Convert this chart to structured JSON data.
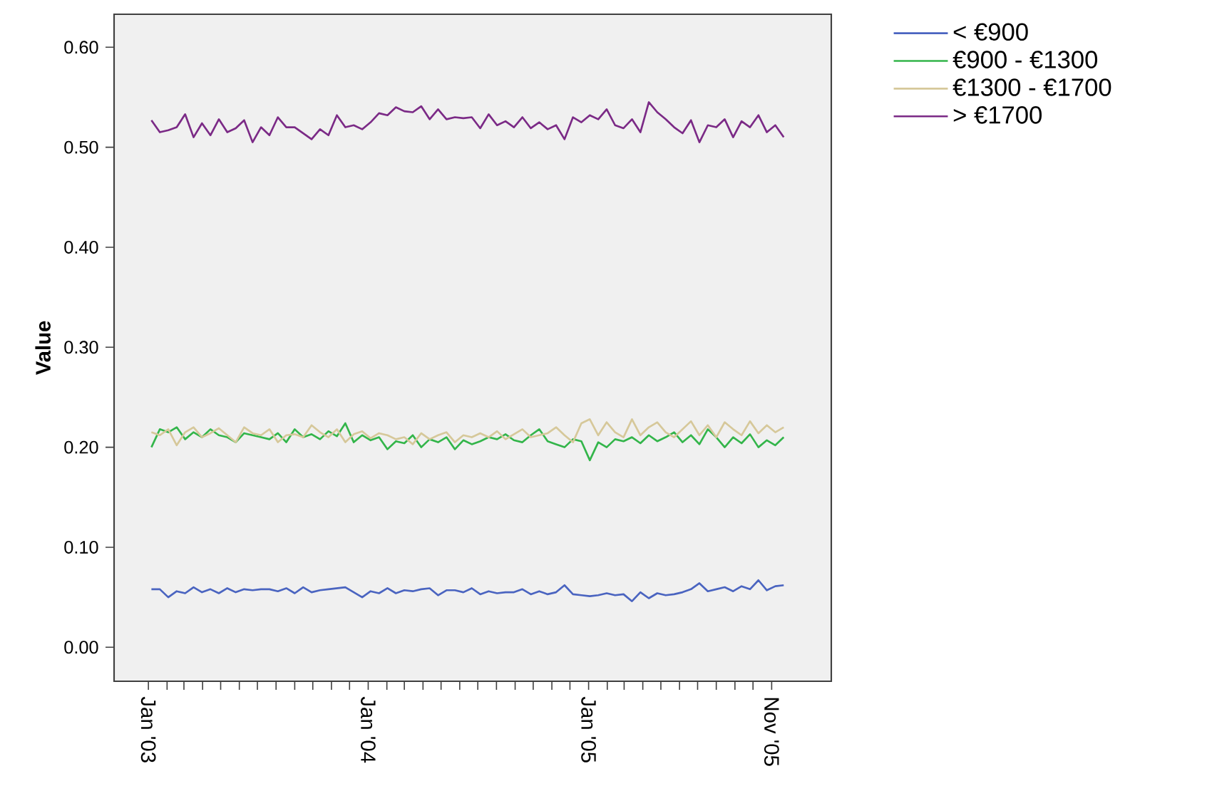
{
  "chart_data": {
    "type": "line",
    "ylabel": "Value",
    "x": [
      "2003-01-06",
      "2003-01-20",
      "2003-02-03",
      "2003-02-17",
      "2003-03-03",
      "2003-03-17",
      "2003-03-31",
      "2003-04-14",
      "2003-04-28",
      "2003-05-12",
      "2003-05-26",
      "2003-06-09",
      "2003-06-23",
      "2003-07-07",
      "2003-07-21",
      "2003-08-04",
      "2003-08-18",
      "2003-09-01",
      "2003-09-15",
      "2003-09-29",
      "2003-10-13",
      "2003-10-27",
      "2003-11-10",
      "2003-11-24",
      "2003-12-08",
      "2003-12-22",
      "2004-01-05",
      "2004-01-19",
      "2004-02-02",
      "2004-02-16",
      "2004-03-01",
      "2004-03-15",
      "2004-03-29",
      "2004-04-12",
      "2004-04-26",
      "2004-05-10",
      "2004-05-24",
      "2004-06-07",
      "2004-06-21",
      "2004-07-05",
      "2004-07-19",
      "2004-08-02",
      "2004-08-16",
      "2004-08-30",
      "2004-09-13",
      "2004-09-27",
      "2004-10-11",
      "2004-10-25",
      "2004-11-08",
      "2004-11-22",
      "2004-12-06",
      "2004-12-20",
      "2005-01-03",
      "2005-01-17",
      "2005-01-31",
      "2005-02-14",
      "2005-02-28",
      "2005-03-14",
      "2005-03-28",
      "2005-04-11",
      "2005-04-25",
      "2005-05-09",
      "2005-05-23",
      "2005-06-06",
      "2005-06-20",
      "2005-07-04",
      "2005-07-18",
      "2005-08-01",
      "2005-08-15",
      "2005-08-29",
      "2005-09-12",
      "2005-09-26",
      "2005-10-10",
      "2005-10-24",
      "2005-11-07",
      "2005-11-21"
    ],
    "series": [
      {
        "name": "< €900",
        "color": "#4a64c0",
        "values": [
          0.058,
          0.058,
          0.05,
          0.056,
          0.054,
          0.06,
          0.055,
          0.058,
          0.054,
          0.059,
          0.055,
          0.058,
          0.057,
          0.058,
          0.058,
          0.056,
          0.059,
          0.054,
          0.06,
          0.055,
          0.057,
          0.058,
          0.059,
          0.06,
          0.055,
          0.05,
          0.056,
          0.054,
          0.059,
          0.054,
          0.057,
          0.056,
          0.058,
          0.059,
          0.052,
          0.057,
          0.057,
          0.055,
          0.059,
          0.053,
          0.056,
          0.054,
          0.055,
          0.055,
          0.058,
          0.053,
          0.056,
          0.053,
          0.055,
          0.062,
          0.053,
          0.052,
          0.051,
          0.052,
          0.054,
          0.052,
          0.053,
          0.046,
          0.055,
          0.049,
          0.054,
          0.052,
          0.053,
          0.055,
          0.058,
          0.064,
          0.056,
          0.058,
          0.06,
          0.056,
          0.061,
          0.058,
          0.067,
          0.057,
          0.061,
          0.062
        ]
      },
      {
        "name": "€900 - €1300",
        "color": "#33b54a",
        "values": [
          0.2,
          0.218,
          0.215,
          0.22,
          0.208,
          0.215,
          0.21,
          0.218,
          0.212,
          0.21,
          0.205,
          0.214,
          0.212,
          0.21,
          0.208,
          0.214,
          0.205,
          0.218,
          0.21,
          0.213,
          0.208,
          0.216,
          0.211,
          0.224,
          0.205,
          0.212,
          0.207,
          0.21,
          0.198,
          0.206,
          0.204,
          0.212,
          0.2,
          0.208,
          0.205,
          0.21,
          0.198,
          0.207,
          0.203,
          0.206,
          0.21,
          0.208,
          0.213,
          0.207,
          0.205,
          0.212,
          0.218,
          0.206,
          0.203,
          0.2,
          0.208,
          0.206,
          0.187,
          0.205,
          0.2,
          0.208,
          0.206,
          0.21,
          0.204,
          0.212,
          0.206,
          0.21,
          0.215,
          0.205,
          0.212,
          0.203,
          0.218,
          0.21,
          0.2,
          0.21,
          0.204,
          0.213,
          0.2,
          0.207,
          0.202,
          0.21
        ]
      },
      {
        "name": "€1300 - €1700",
        "color": "#d6c89a",
        "values": [
          0.215,
          0.212,
          0.218,
          0.202,
          0.215,
          0.22,
          0.21,
          0.214,
          0.219,
          0.212,
          0.205,
          0.22,
          0.214,
          0.212,
          0.218,
          0.205,
          0.212,
          0.213,
          0.21,
          0.222,
          0.215,
          0.21,
          0.218,
          0.205,
          0.213,
          0.216,
          0.209,
          0.214,
          0.212,
          0.208,
          0.21,
          0.203,
          0.214,
          0.208,
          0.212,
          0.215,
          0.205,
          0.212,
          0.21,
          0.214,
          0.21,
          0.216,
          0.208,
          0.213,
          0.218,
          0.21,
          0.212,
          0.214,
          0.22,
          0.212,
          0.205,
          0.224,
          0.228,
          0.212,
          0.225,
          0.215,
          0.21,
          0.228,
          0.212,
          0.22,
          0.225,
          0.215,
          0.21,
          0.218,
          0.226,
          0.212,
          0.222,
          0.21,
          0.225,
          0.218,
          0.212,
          0.226,
          0.214,
          0.222,
          0.215,
          0.22
        ]
      },
      {
        "name": "> €1700",
        "color": "#7b2a86",
        "values": [
          0.527,
          0.515,
          0.517,
          0.52,
          0.533,
          0.51,
          0.524,
          0.512,
          0.528,
          0.515,
          0.519,
          0.527,
          0.505,
          0.52,
          0.512,
          0.53,
          0.52,
          0.52,
          0.514,
          0.508,
          0.518,
          0.512,
          0.532,
          0.52,
          0.522,
          0.518,
          0.525,
          0.534,
          0.532,
          0.54,
          0.536,
          0.535,
          0.541,
          0.528,
          0.538,
          0.528,
          0.53,
          0.529,
          0.53,
          0.519,
          0.533,
          0.522,
          0.526,
          0.52,
          0.53,
          0.519,
          0.525,
          0.518,
          0.522,
          0.508,
          0.53,
          0.525,
          0.532,
          0.528,
          0.538,
          0.522,
          0.519,
          0.528,
          0.515,
          0.545,
          0.535,
          0.528,
          0.52,
          0.514,
          0.527,
          0.505,
          0.522,
          0.52,
          0.528,
          0.51,
          0.526,
          0.52,
          0.532,
          0.515,
          0.522,
          0.51
        ]
      }
    ],
    "xlim": [
      "2002-11-05",
      "2006-02-08"
    ],
    "xticks": [
      {
        "value": "2003-01-01",
        "label": "Jan '03"
      },
      {
        "value": "2003-02-01",
        "label": null
      },
      {
        "value": "2003-03-01",
        "label": null
      },
      {
        "value": "2003-04-01",
        "label": null
      },
      {
        "value": "2003-05-01",
        "label": null
      },
      {
        "value": "2003-06-01",
        "label": null
      },
      {
        "value": "2003-07-01",
        "label": null
      },
      {
        "value": "2003-08-01",
        "label": null
      },
      {
        "value": "2003-09-01",
        "label": null
      },
      {
        "value": "2003-10-01",
        "label": null
      },
      {
        "value": "2003-11-01",
        "label": null
      },
      {
        "value": "2003-12-01",
        "label": null
      },
      {
        "value": "2004-01-01",
        "label": "Jan '04"
      },
      {
        "value": "2004-02-01",
        "label": null
      },
      {
        "value": "2004-03-01",
        "label": null
      },
      {
        "value": "2004-04-01",
        "label": null
      },
      {
        "value": "2004-05-01",
        "label": null
      },
      {
        "value": "2004-06-01",
        "label": null
      },
      {
        "value": "2004-07-01",
        "label": null
      },
      {
        "value": "2004-08-01",
        "label": null
      },
      {
        "value": "2004-09-01",
        "label": null
      },
      {
        "value": "2004-10-01",
        "label": null
      },
      {
        "value": "2004-11-01",
        "label": null
      },
      {
        "value": "2004-12-01",
        "label": null
      },
      {
        "value": "2005-01-01",
        "label": "Jan '05"
      },
      {
        "value": "2005-02-01",
        "label": null
      },
      {
        "value": "2005-03-01",
        "label": null
      },
      {
        "value": "2005-04-01",
        "label": null
      },
      {
        "value": "2005-05-01",
        "label": null
      },
      {
        "value": "2005-06-01",
        "label": null
      },
      {
        "value": "2005-07-01",
        "label": null
      },
      {
        "value": "2005-08-01",
        "label": null
      },
      {
        "value": "2005-09-01",
        "label": null
      },
      {
        "value": "2005-10-01",
        "label": null
      },
      {
        "value": "2005-11-01",
        "label": "Nov '05"
      }
    ],
    "ylim": [
      -0.034,
      0.633
    ],
    "yticks": [
      {
        "value": 0,
        "label": "0.00"
      },
      {
        "value": 0.1,
        "label": "0.10"
      },
      {
        "value": 0.2,
        "label": "0.20"
      },
      {
        "value": 0.3,
        "label": "0.30"
      },
      {
        "value": 0.4,
        "label": "0.40"
      },
      {
        "value": 0.5,
        "label": "0.50"
      },
      {
        "value": 0.6,
        "label": "0.60"
      }
    ],
    "grid": false,
    "legend": "top right",
    "marker": "none",
    "line_style": "solid"
  }
}
